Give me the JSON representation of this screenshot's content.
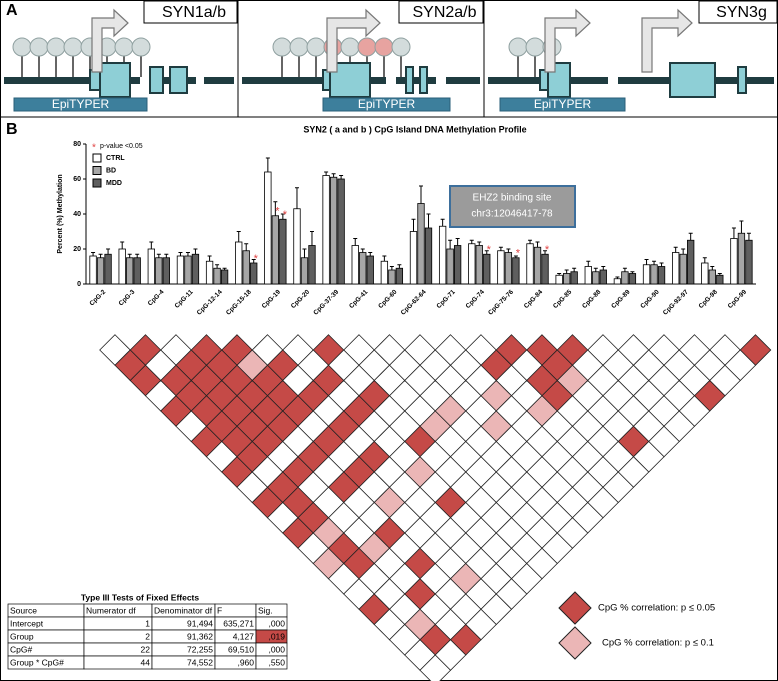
{
  "panel_a": {
    "label": "A",
    "genes": [
      "SYN1a/b",
      "SYN2a/b",
      "SYN3g"
    ],
    "assay": "EpiTYPER"
  },
  "panel_b": {
    "label": "B"
  },
  "chart_data": {
    "type": "bar",
    "title": "SYN2 ( a and b ) CpG Island DNA Methylation Profile",
    "y_label": "Percent (%) Methylation",
    "categories": [
      "CpG-2",
      "CpG-3",
      "CpG-4",
      "CpG-11",
      "CpG-12-14",
      "CpG-15-18",
      "CpG-19",
      "CpG-20",
      "CpG-37-39",
      "CpG-41",
      "CpG-60",
      "CpG-62-64",
      "CpG-71",
      "CpG-74",
      "CpG-75-76",
      "CpG-84",
      "CpG-85",
      "CpG-88",
      "CpG-89",
      "CpG-90",
      "CpG-92-97",
      "CpG-98",
      "CpG-99"
    ],
    "series": [
      {
        "name": "CTRL",
        "color": "#ffffff",
        "values": [
          16,
          20,
          20,
          16,
          13,
          24,
          64,
          43,
          62,
          22,
          13,
          30,
          33,
          23,
          19,
          23,
          5,
          10,
          3,
          11,
          18,
          12,
          26
        ],
        "errors": [
          2,
          4,
          4,
          2,
          3,
          6,
          8,
          12,
          2,
          4,
          3,
          7,
          4,
          2,
          2,
          2,
          1,
          3,
          1,
          3,
          3,
          3,
          6
        ]
      },
      {
        "name": "BD",
        "color": "#a6a6a6",
        "values": [
          15,
          15,
          15,
          16,
          9,
          19,
          39,
          15,
          61,
          18,
          8,
          46,
          20,
          22,
          18,
          21,
          6,
          7,
          7,
          11,
          17,
          8,
          29
        ],
        "errors": [
          2,
          2,
          2,
          2,
          2,
          4,
          8,
          5,
          2,
          2,
          2,
          10,
          5,
          2,
          2,
          3,
          2,
          2,
          2,
          2,
          3,
          2,
          7
        ]
      },
      {
        "name": "MDD",
        "color": "#5f5f5f",
        "values": [
          17,
          15,
          15,
          17,
          8,
          12,
          37,
          22,
          60,
          16,
          9,
          32,
          22,
          17,
          15,
          17,
          7,
          8,
          6,
          10,
          25,
          5,
          25
        ],
        "errors": [
          3,
          2,
          2,
          3,
          1,
          2,
          3,
          8,
          2,
          2,
          2,
          8,
          4,
          2,
          1,
          2,
          2,
          2,
          1,
          2,
          4,
          1,
          4
        ]
      }
    ],
    "significance": {
      "marker": "*",
      "label": "p-value <0.05",
      "points": [
        [
          2,
          5
        ],
        [
          1,
          6
        ],
        [
          2,
          6
        ],
        [
          2,
          13
        ],
        [
          2,
          14
        ],
        [
          2,
          15
        ]
      ]
    },
    "annotation": [
      "EHZ2 binding site",
      "chr3:12046417-78"
    ],
    "ylim": [
      0,
      80
    ],
    "yticks": [
      0,
      20,
      40,
      60,
      80
    ]
  },
  "correlation": {
    "legend": [
      {
        "label": "CpG % correlation: p ≤ 0.05",
        "color": "#c54a47"
      },
      {
        "label": "CpG % correlation: p ≤ 0.1",
        "color": "#ebb6b6"
      }
    ],
    "rows": [
      [
        0,
        2,
        0,
        2,
        2,
        0,
        0,
        2,
        0,
        0,
        0,
        0,
        0,
        2,
        2,
        2,
        0,
        0,
        0,
        0,
        0,
        2
      ],
      [
        2,
        0,
        2,
        2,
        1,
        2,
        0,
        0,
        0,
        0,
        0,
        0,
        2,
        0,
        2,
        0,
        0,
        0,
        0,
        0,
        0
      ],
      [
        2,
        2,
        2,
        2,
        2,
        0,
        2,
        0,
        0,
        0,
        0,
        0,
        0,
        2,
        1,
        0,
        0,
        0,
        0,
        0
      ],
      [
        0,
        2,
        2,
        2,
        2,
        2,
        0,
        2,
        0,
        0,
        0,
        1,
        0,
        2,
        0,
        0,
        0,
        0,
        2
      ],
      [
        2,
        2,
        2,
        2,
        2,
        0,
        2,
        0,
        0,
        1,
        0,
        0,
        1,
        0,
        0,
        0,
        0,
        0
      ],
      [
        0,
        2,
        2,
        2,
        0,
        2,
        0,
        0,
        1,
        0,
        1,
        0,
        0,
        0,
        0,
        0,
        0
      ],
      [
        2,
        2,
        2,
        0,
        2,
        0,
        0,
        2,
        0,
        0,
        0,
        0,
        0,
        0,
        2,
        0
      ],
      [
        0,
        2,
        0,
        2,
        0,
        2,
        0,
        0,
        0,
        0,
        0,
        0,
        0,
        0,
        0
      ],
      [
        2,
        0,
        2,
        0,
        2,
        0,
        1,
        0,
        0,
        0,
        0,
        0,
        0,
        0
      ],
      [
        0,
        2,
        0,
        2,
        0,
        0,
        0,
        0,
        0,
        0,
        0,
        0,
        0
      ],
      [
        2,
        2,
        0,
        0,
        1,
        0,
        2,
        0,
        0,
        0,
        0,
        0
      ],
      [
        0,
        2,
        0,
        0,
        0,
        0,
        0,
        0,
        0,
        0,
        0
      ],
      [
        2,
        1,
        0,
        2,
        0,
        0,
        0,
        0,
        0,
        0
      ],
      [
        0,
        2,
        1,
        0,
        0,
        0,
        0,
        0,
        0
      ],
      [
        1,
        2,
        0,
        2,
        0,
        0,
        0,
        0
      ],
      [
        0,
        0,
        0,
        0,
        1,
        0,
        0
      ],
      [
        0,
        0,
        2,
        0,
        0,
        0
      ],
      [
        2,
        0,
        0,
        0,
        0
      ],
      [
        0,
        1,
        0,
        0
      ],
      [
        0,
        2,
        2
      ],
      [
        0,
        0
      ],
      [
        0
      ]
    ]
  },
  "table": {
    "title": "Type III Tests of Fixed Effects",
    "header": [
      "Source",
      "Numerator df",
      "Denominator df",
      "F",
      "Sig."
    ],
    "rows": [
      [
        "Intercept",
        "1",
        "91,494",
        "635,271",
        ",000"
      ],
      [
        "Group",
        "2",
        "91,362",
        "4,127",
        ",019"
      ],
      [
        "CpG#",
        "22",
        "72,255",
        "69,510",
        ",000"
      ],
      [
        "Group * CpG#",
        "44",
        "74,552",
        ",960",
        ",550"
      ]
    ],
    "highlight_color": "#c54a47"
  }
}
